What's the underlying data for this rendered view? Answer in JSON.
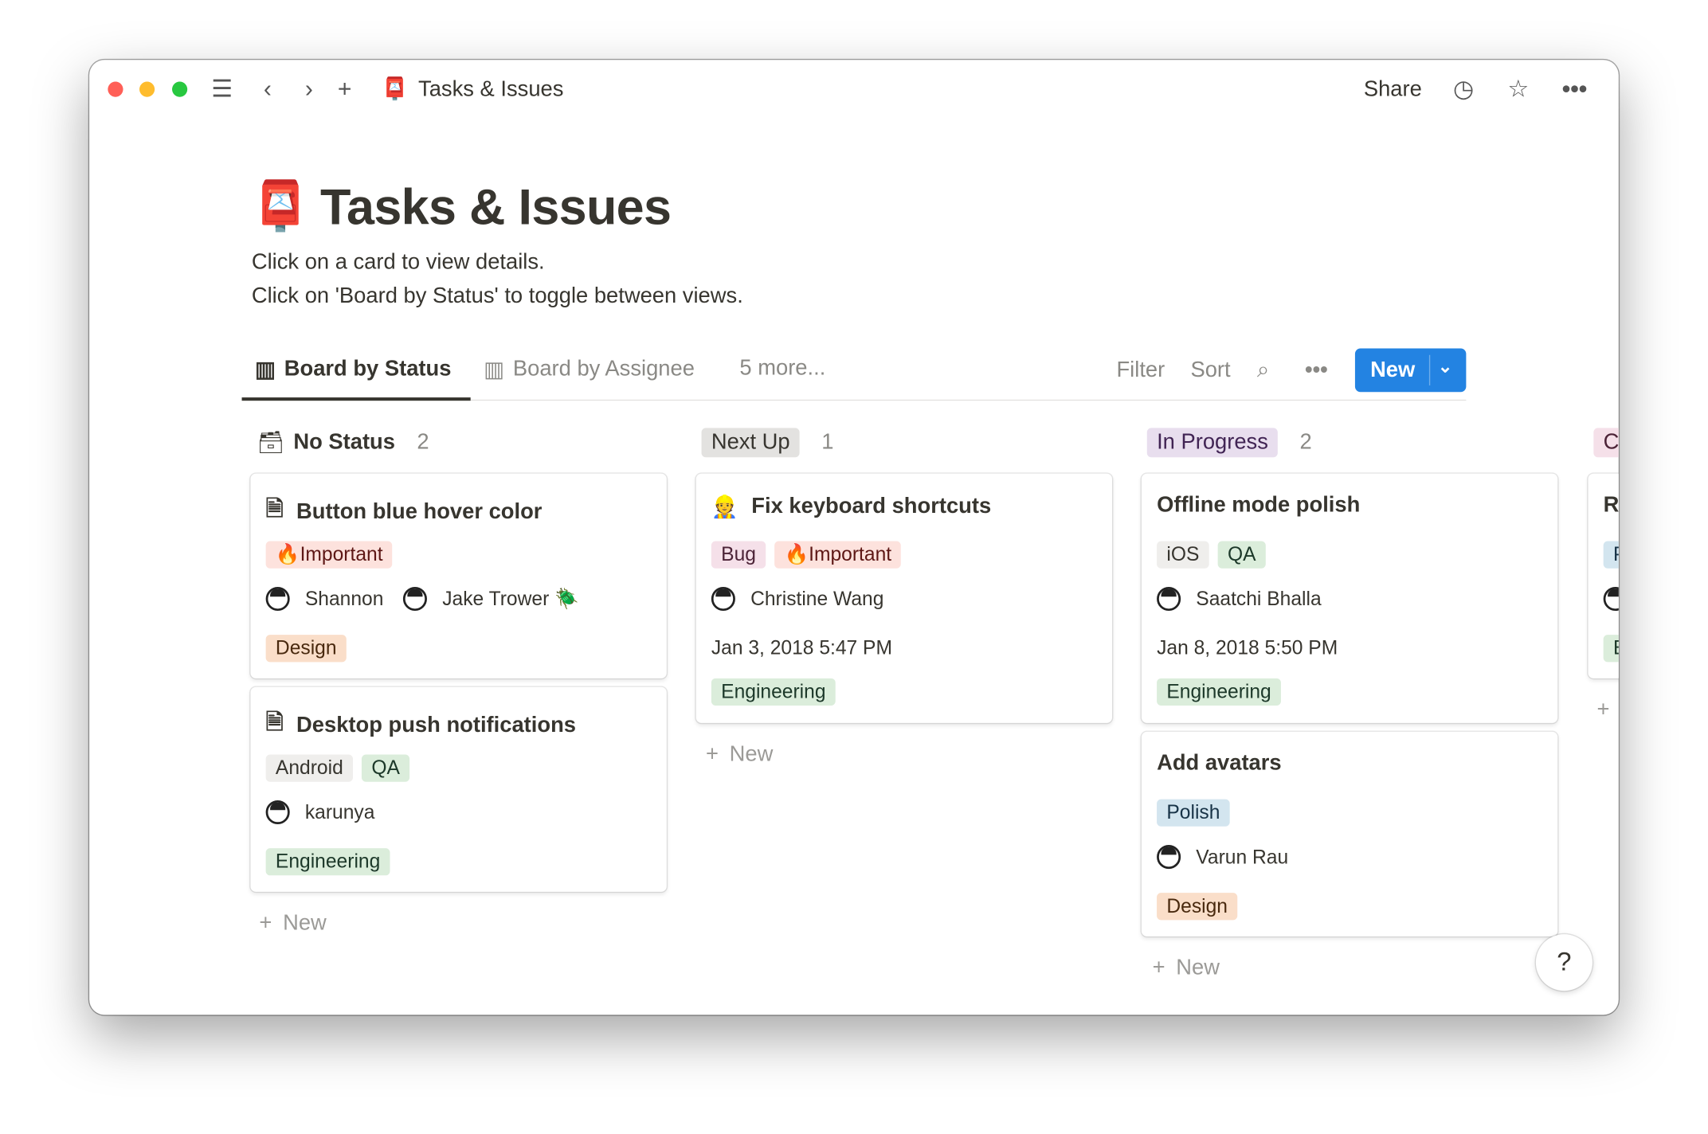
{
  "window": {
    "title": "Tasks & Issues",
    "share": "Share"
  },
  "page": {
    "title": "Tasks & Issues",
    "desc1": "Click on a card to view details.",
    "desc2": "Click on 'Board by Status' to toggle between views."
  },
  "tabs": [
    {
      "label": "Board by Status",
      "active": true
    },
    {
      "label": "Board by Assignee"
    },
    {
      "label": "5 more..."
    }
  ],
  "toolbar": {
    "filter": "Filter",
    "sort": "Sort",
    "new": "New"
  },
  "colors": {
    "accent": "#2383e2"
  },
  "columns": [
    {
      "title": "No Status",
      "count": "2",
      "new": "New",
      "cards": [
        {
          "title": "Button blue hover color",
          "tags": [
            "🔥Important"
          ],
          "people": [
            "Shannon",
            "Jake Trower 🪲"
          ],
          "team": "Design"
        },
        {
          "title": "Desktop push notifications",
          "tags": [
            "Android",
            "QA"
          ],
          "people": [
            "karunya"
          ],
          "team": "Engineering"
        }
      ]
    },
    {
      "title": "Next Up",
      "count": "1",
      "new": "New",
      "cards": [
        {
          "title": "Fix keyboard shortcuts",
          "tags": [
            "Bug",
            "🔥Important"
          ],
          "people": [
            "Christine Wang"
          ],
          "date": "Jan 3, 2018 5:47 PM",
          "team": "Engineering"
        }
      ]
    },
    {
      "title": "In Progress",
      "count": "2",
      "new": "New",
      "cards": [
        {
          "title": "Offline mode polish",
          "tags": [
            "iOS",
            "QA"
          ],
          "people": [
            "Saatchi Bhalla"
          ],
          "date": "Jan 8, 2018 5:50 PM",
          "team": "Engineering"
        },
        {
          "title": "Add avatars",
          "tags": [
            "Polish"
          ],
          "people": [
            "Varun Rau"
          ],
          "team": "Design"
        }
      ]
    },
    {
      "title": "C",
      "cards": [
        {
          "title": "Re",
          "tags": [
            "P"
          ],
          "team": "E"
        }
      ]
    }
  ],
  "help": "?"
}
